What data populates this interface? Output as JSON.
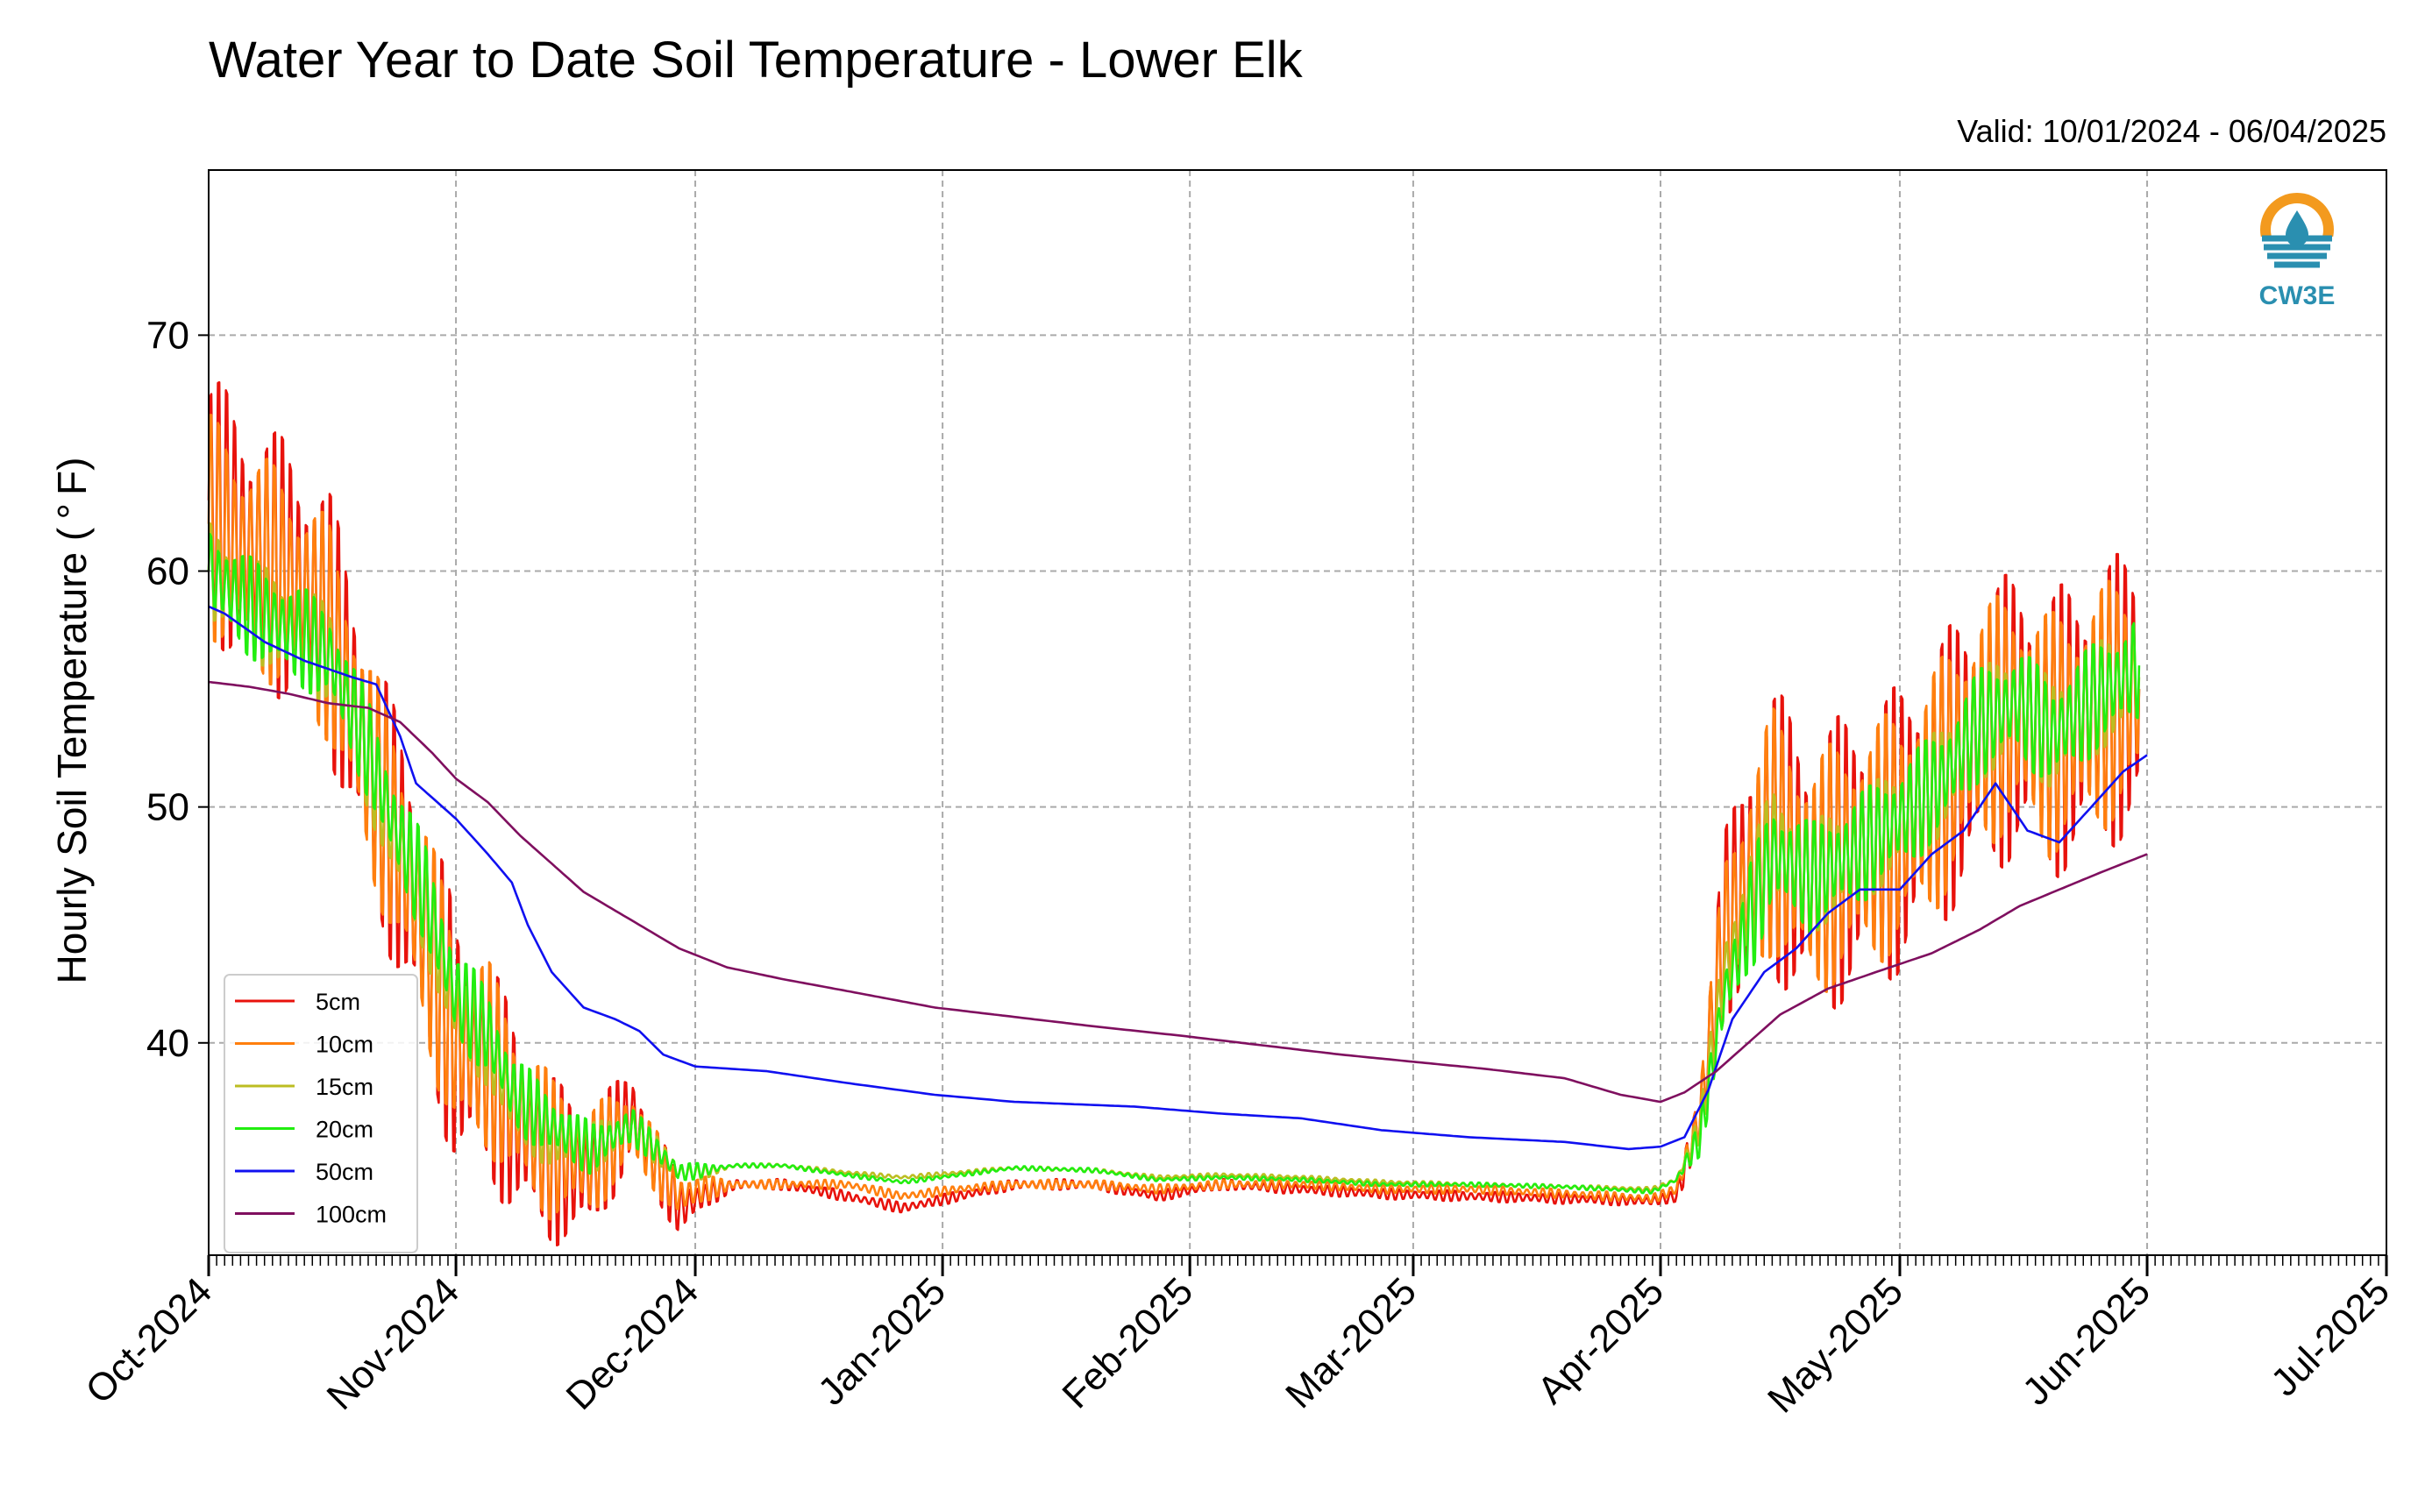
{
  "chart_data": {
    "type": "line",
    "title": "Water Year to Date Soil Temperature - Lower Elk",
    "subtitle": "Valid: 10/01/2024 - 06/04/2025",
    "ylabel": "Hourly Soil Temperature ($^\\circ$F)",
    "ylabel_display": "Hourly Soil Temperature ( ° F)",
    "xlabel": "",
    "logo_text": "CW3E",
    "x_ticks": [
      "Oct-2024",
      "Nov-2024",
      "Dec-2024",
      "Jan-2025",
      "Feb-2025",
      "Mar-2025",
      "Apr-2025",
      "May-2025",
      "Jun-2025",
      "Jul-2025"
    ],
    "xlim": [
      "2024-10-01",
      "2025-07-01"
    ],
    "y_ticks": [
      40,
      50,
      60,
      70
    ],
    "ylim": [
      31,
      77
    ],
    "grid": true,
    "legend_position": "lower-left",
    "series": [
      {
        "name": "5cm",
        "color": "#e8120c",
        "points": [
          [
            "2024-10-01",
            63
          ],
          [
            "2024-10-06",
            61
          ],
          [
            "2024-10-11",
            60
          ],
          [
            "2024-10-16",
            58
          ],
          [
            "2024-10-21",
            52
          ],
          [
            "2024-10-24",
            49
          ],
          [
            "2024-10-28",
            45
          ],
          [
            "2024-11-01",
            40
          ],
          [
            "2024-11-05",
            39
          ],
          [
            "2024-11-08",
            37
          ],
          [
            "2024-11-13",
            35
          ],
          [
            "2024-11-18",
            34.5
          ],
          [
            "2024-11-23",
            37
          ],
          [
            "2024-11-26",
            35
          ],
          [
            "2024-11-29",
            33
          ],
          [
            "2024-12-02",
            33.5
          ],
          [
            "2024-12-06",
            34
          ],
          [
            "2024-12-12",
            34
          ],
          [
            "2024-12-20",
            33.5
          ],
          [
            "2024-12-27",
            33
          ],
          [
            "2025-01-03",
            33.5
          ],
          [
            "2025-01-10",
            34
          ],
          [
            "2025-01-20",
            34
          ],
          [
            "2025-01-28",
            33.5
          ],
          [
            "2025-02-05",
            34
          ],
          [
            "2025-02-15",
            33.8
          ],
          [
            "2025-02-25",
            33.6
          ],
          [
            "2025-03-08",
            33.5
          ],
          [
            "2025-03-20",
            33.4
          ],
          [
            "2025-03-31",
            33.3
          ],
          [
            "2025-04-03",
            33.5
          ],
          [
            "2025-04-06",
            37
          ],
          [
            "2025-04-09",
            45
          ],
          [
            "2025-04-15",
            49
          ],
          [
            "2025-04-20",
            47
          ],
          [
            "2025-04-25",
            48
          ],
          [
            "2025-05-01",
            49
          ],
          [
            "2025-05-06",
            51
          ],
          [
            "2025-05-11",
            53
          ],
          [
            "2025-05-16",
            54
          ],
          [
            "2025-05-20",
            53
          ],
          [
            "2025-05-25",
            54
          ],
          [
            "2025-05-31",
            55
          ]
        ]
      },
      {
        "name": "10cm",
        "color": "#ff7f0e",
        "points": [
          [
            "2024-10-01",
            62
          ],
          [
            "2024-10-06",
            60.5
          ],
          [
            "2024-10-11",
            59.5
          ],
          [
            "2024-10-16",
            57.5
          ],
          [
            "2024-10-21",
            52
          ],
          [
            "2024-10-24",
            49
          ],
          [
            "2024-10-28",
            45
          ],
          [
            "2024-11-01",
            40
          ],
          [
            "2024-11-05",
            39.5
          ],
          [
            "2024-11-08",
            37.5
          ],
          [
            "2024-11-13",
            35.5
          ],
          [
            "2024-11-18",
            35
          ],
          [
            "2024-11-23",
            36.5
          ],
          [
            "2024-11-26",
            35
          ],
          [
            "2024-11-29",
            33.5
          ],
          [
            "2024-12-02",
            33.8
          ],
          [
            "2024-12-06",
            34
          ],
          [
            "2024-12-12",
            34
          ],
          [
            "2024-12-20",
            34
          ],
          [
            "2024-12-27",
            33.5
          ],
          [
            "2025-01-03",
            33.8
          ],
          [
            "2025-01-10",
            34
          ],
          [
            "2025-01-20",
            34
          ],
          [
            "2025-01-28",
            33.8
          ],
          [
            "2025-02-05",
            34
          ],
          [
            "2025-02-15",
            34
          ],
          [
            "2025-02-25",
            33.8
          ],
          [
            "2025-03-08",
            33.8
          ],
          [
            "2025-03-20",
            33.6
          ],
          [
            "2025-03-31",
            33.4
          ],
          [
            "2025-04-03",
            33.8
          ],
          [
            "2025-04-06",
            37
          ],
          [
            "2025-04-09",
            44.5
          ],
          [
            "2025-04-15",
            49
          ],
          [
            "2025-04-20",
            47
          ],
          [
            "2025-04-25",
            48
          ],
          [
            "2025-05-01",
            49
          ],
          [
            "2025-05-06",
            51
          ],
          [
            "2025-05-11",
            53.5
          ],
          [
            "2025-05-16",
            54
          ],
          [
            "2025-05-20",
            53
          ],
          [
            "2025-05-25",
            54
          ],
          [
            "2025-05-31",
            55
          ]
        ]
      },
      {
        "name": "15cm",
        "color": "#bcbd22",
        "points": [
          [
            "2024-10-01",
            60
          ],
          [
            "2024-10-06",
            58.5
          ],
          [
            "2024-10-11",
            57.5
          ],
          [
            "2024-10-16",
            56.5
          ],
          [
            "2024-10-21",
            52
          ],
          [
            "2024-10-24",
            49
          ],
          [
            "2024-10-28",
            46
          ],
          [
            "2024-11-01",
            41.5
          ],
          [
            "2024-11-05",
            40
          ],
          [
            "2024-11-08",
            37.5
          ],
          [
            "2024-11-13",
            36
          ],
          [
            "2024-11-18",
            35.5
          ],
          [
            "2024-11-23",
            36.5
          ],
          [
            "2024-11-26",
            35.5
          ],
          [
            "2024-11-29",
            34.5
          ],
          [
            "2024-12-02",
            34.5
          ],
          [
            "2024-12-06",
            34.8
          ],
          [
            "2024-12-12",
            34.8
          ],
          [
            "2024-12-20",
            34.5
          ],
          [
            "2024-12-27",
            34.3
          ],
          [
            "2025-01-03",
            34.5
          ],
          [
            "2025-01-10",
            34.7
          ],
          [
            "2025-01-20",
            34.6
          ],
          [
            "2025-01-28",
            34.3
          ],
          [
            "2025-02-05",
            34.4
          ],
          [
            "2025-02-15",
            34.3
          ],
          [
            "2025-02-25",
            34.1
          ],
          [
            "2025-03-08",
            34.0
          ],
          [
            "2025-03-20",
            33.9
          ],
          [
            "2025-03-31",
            33.8
          ],
          [
            "2025-04-03",
            34.2
          ],
          [
            "2025-04-06",
            36.5
          ],
          [
            "2025-04-09",
            43
          ],
          [
            "2025-04-15",
            48.5
          ],
          [
            "2025-04-20",
            47
          ],
          [
            "2025-04-25",
            48
          ],
          [
            "2025-05-01",
            49.5
          ],
          [
            "2025-05-06",
            51
          ],
          [
            "2025-05-11",
            53.5
          ],
          [
            "2025-05-16",
            54.5
          ],
          [
            "2025-05-20",
            53
          ],
          [
            "2025-05-25",
            54.5
          ],
          [
            "2025-05-31",
            55.5
          ]
        ]
      },
      {
        "name": "20cm",
        "color": "#22ee10",
        "points": [
          [
            "2024-10-01",
            60
          ],
          [
            "2024-10-06",
            58.5
          ],
          [
            "2024-10-11",
            57.5
          ],
          [
            "2024-10-16",
            56.5
          ],
          [
            "2024-10-21",
            52.5
          ],
          [
            "2024-10-24",
            49.5
          ],
          [
            "2024-10-28",
            46.5
          ],
          [
            "2024-11-01",
            42
          ],
          [
            "2024-11-05",
            40.5
          ],
          [
            "2024-11-08",
            38
          ],
          [
            "2024-11-13",
            36.5
          ],
          [
            "2024-11-18",
            35.5
          ],
          [
            "2024-11-23",
            36.5
          ],
          [
            "2024-11-26",
            35.5
          ],
          [
            "2024-11-29",
            34.5
          ],
          [
            "2024-12-02",
            34.6
          ],
          [
            "2024-12-06",
            34.8
          ],
          [
            "2024-12-12",
            34.8
          ],
          [
            "2024-12-20",
            34.4
          ],
          [
            "2024-12-27",
            34.1
          ],
          [
            "2025-01-03",
            34.4
          ],
          [
            "2025-01-10",
            34.7
          ],
          [
            "2025-01-20",
            34.6
          ],
          [
            "2025-01-28",
            34.2
          ],
          [
            "2025-02-05",
            34.3
          ],
          [
            "2025-02-15",
            34.2
          ],
          [
            "2025-02-25",
            34.0
          ],
          [
            "2025-03-08",
            34.0
          ],
          [
            "2025-03-20",
            33.9
          ],
          [
            "2025-03-31",
            33.7
          ],
          [
            "2025-04-03",
            34.2
          ],
          [
            "2025-04-06",
            36
          ],
          [
            "2025-04-09",
            42
          ],
          [
            "2025-04-15",
            48
          ],
          [
            "2025-04-20",
            47
          ],
          [
            "2025-04-25",
            48
          ],
          [
            "2025-05-01",
            49.5
          ],
          [
            "2025-05-06",
            51
          ],
          [
            "2025-05-11",
            53.5
          ],
          [
            "2025-05-16",
            54.5
          ],
          [
            "2025-05-20",
            53
          ],
          [
            "2025-05-25",
            54.5
          ],
          [
            "2025-05-31",
            56
          ]
        ]
      },
      {
        "name": "50cm",
        "color": "#1010f0",
        "points": [
          [
            "2024-10-01",
            58.5
          ],
          [
            "2024-10-03",
            58.2
          ],
          [
            "2024-10-08",
            57
          ],
          [
            "2024-10-13",
            56.2
          ],
          [
            "2024-10-19",
            55.5
          ],
          [
            "2024-10-22",
            55.2
          ],
          [
            "2024-10-25",
            53
          ],
          [
            "2024-10-27",
            51
          ],
          [
            "2024-11-01",
            49.5
          ],
          [
            "2024-11-05",
            48
          ],
          [
            "2024-11-08",
            46.8
          ],
          [
            "2024-11-10",
            45
          ],
          [
            "2024-11-13",
            43
          ],
          [
            "2024-11-17",
            41.5
          ],
          [
            "2024-11-21",
            41
          ],
          [
            "2024-11-24",
            40.5
          ],
          [
            "2024-11-27",
            39.5
          ],
          [
            "2024-12-01",
            39
          ],
          [
            "2024-12-10",
            38.8
          ],
          [
            "2024-12-20",
            38.3
          ],
          [
            "2024-12-31",
            37.8
          ],
          [
            "2025-01-10",
            37.5
          ],
          [
            "2025-01-25",
            37.3
          ],
          [
            "2025-02-05",
            37
          ],
          [
            "2025-02-15",
            36.8
          ],
          [
            "2025-02-25",
            36.3
          ],
          [
            "2025-03-08",
            36
          ],
          [
            "2025-03-20",
            35.8
          ],
          [
            "2025-03-28",
            35.5
          ],
          [
            "2025-04-01",
            35.6
          ],
          [
            "2025-04-04",
            36
          ],
          [
            "2025-04-07",
            38
          ],
          [
            "2025-04-10",
            41
          ],
          [
            "2025-04-14",
            43
          ],
          [
            "2025-04-18",
            44
          ],
          [
            "2025-04-22",
            45.5
          ],
          [
            "2025-04-26",
            46.5
          ],
          [
            "2025-05-01",
            46.5
          ],
          [
            "2025-05-05",
            48
          ],
          [
            "2025-05-09",
            49
          ],
          [
            "2025-05-13",
            51
          ],
          [
            "2025-05-17",
            49
          ],
          [
            "2025-05-21",
            48.5
          ],
          [
            "2025-05-25",
            50
          ],
          [
            "2025-05-29",
            51.5
          ],
          [
            "2025-06-01",
            52.2
          ]
        ]
      },
      {
        "name": "100cm",
        "color": "#7f0f5f",
        "points": [
          [
            "2024-10-01",
            55.3
          ],
          [
            "2024-10-06",
            55.1
          ],
          [
            "2024-10-11",
            54.8
          ],
          [
            "2024-10-16",
            54.4
          ],
          [
            "2024-10-21",
            54.2
          ],
          [
            "2024-10-25",
            53.6
          ],
          [
            "2024-10-29",
            52.3
          ],
          [
            "2024-11-01",
            51.2
          ],
          [
            "2024-11-05",
            50.2
          ],
          [
            "2024-11-09",
            48.8
          ],
          [
            "2024-11-13",
            47.6
          ],
          [
            "2024-11-17",
            46.4
          ],
          [
            "2024-11-21",
            45.6
          ],
          [
            "2024-11-25",
            44.8
          ],
          [
            "2024-11-29",
            44
          ],
          [
            "2024-12-05",
            43.2
          ],
          [
            "2024-12-12",
            42.7
          ],
          [
            "2024-12-20",
            42.2
          ],
          [
            "2024-12-31",
            41.5
          ],
          [
            "2025-01-10",
            41.1
          ],
          [
            "2025-01-20",
            40.7
          ],
          [
            "2025-01-31",
            40.3
          ],
          [
            "2025-02-10",
            39.9
          ],
          [
            "2025-02-20",
            39.5
          ],
          [
            "2025-03-01",
            39.2
          ],
          [
            "2025-03-10",
            38.9
          ],
          [
            "2025-03-20",
            38.5
          ],
          [
            "2025-03-27",
            37.8
          ],
          [
            "2025-04-01",
            37.5
          ],
          [
            "2025-04-04",
            37.9
          ],
          [
            "2025-04-08",
            38.8
          ],
          [
            "2025-04-12",
            40
          ],
          [
            "2025-04-16",
            41.2
          ],
          [
            "2025-04-22",
            42.3
          ],
          [
            "2025-04-28",
            43
          ],
          [
            "2025-05-05",
            43.8
          ],
          [
            "2025-05-11",
            44.8
          ],
          [
            "2025-05-16",
            45.8
          ],
          [
            "2025-05-21",
            46.5
          ],
          [
            "2025-05-26",
            47.2
          ],
          [
            "2025-06-01",
            48
          ]
        ]
      }
    ],
    "diurnal_amplitude": {
      "5cm": 6.5,
      "10cm": 5.5,
      "15cm": 2.5,
      "20cm": 2.5,
      "50cm": 0.15,
      "100cm": 0
    }
  }
}
